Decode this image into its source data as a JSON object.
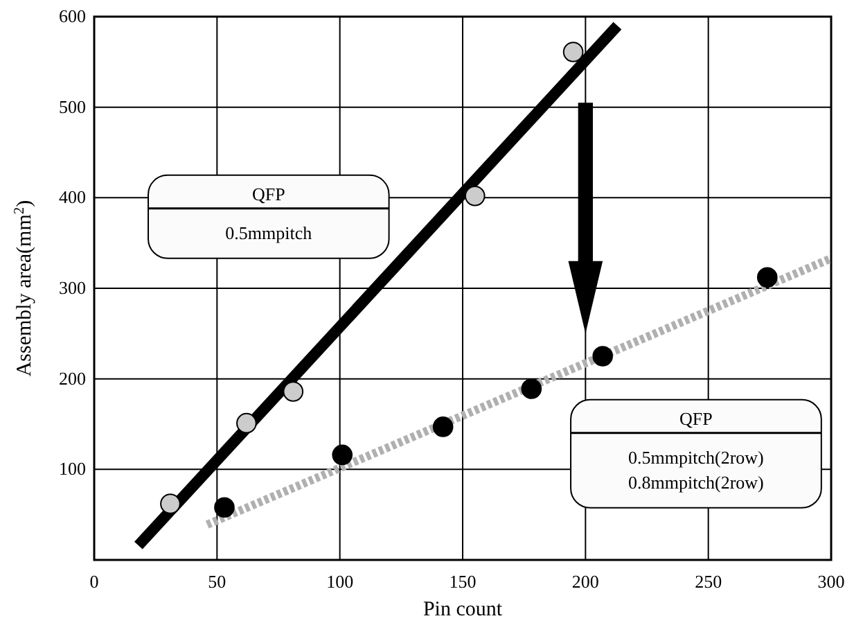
{
  "chart_data": {
    "type": "scatter",
    "xlabel": "Pin count",
    "ylabel": "Assembly area(mm$^{2}$)",
    "xlim": [
      0,
      300
    ],
    "xticks": [
      0,
      50,
      100,
      150,
      200,
      250,
      300
    ],
    "ylim": [
      0,
      600
    ],
    "yticks": [
      100,
      200,
      300,
      400,
      500,
      600
    ],
    "grid": true,
    "series": [
      {
        "type": "line",
        "color": "#000000",
        "x": [
          18,
          213
        ],
        "values": [
          16,
          590
        ],
        "line_style": "solid",
        "marker": "none"
      },
      {
        "type": "line",
        "color": "#b0b0b0",
        "x": [
          46,
          300
        ],
        "values": [
          39,
          333
        ],
        "line_style": "dotted",
        "marker": "none"
      },
      {
        "marker": "circle",
        "color": "#cccccc",
        "x": [
          31,
          62,
          81,
          155,
          195
        ],
        "values": [
          62,
          151,
          186,
          402,
          561
        ]
      },
      {
        "marker": "circle",
        "color": "#000000",
        "x": [
          53,
          101,
          142,
          178,
          207,
          274
        ],
        "values": [
          58,
          116,
          147,
          189,
          225,
          312
        ]
      }
    ],
    "annotations": [
      "QFP",
      "0.5mmpitch",
      "QFP",
      "0.5mmpitch(2row)",
      "0.8mmpitch(2row)"
    ]
  }
}
